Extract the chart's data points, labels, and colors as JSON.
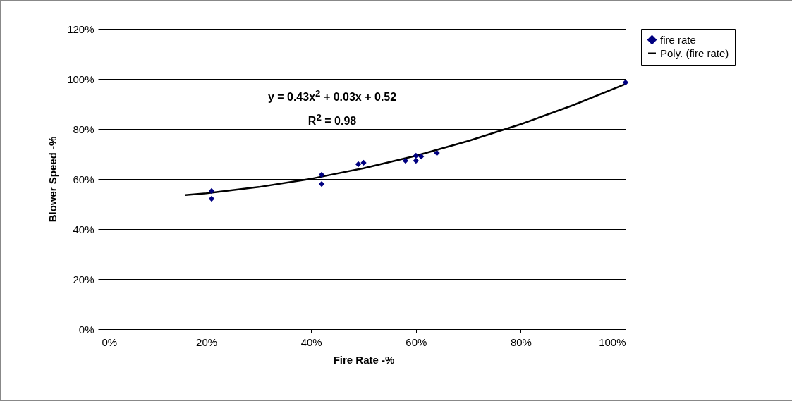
{
  "chart_data": {
    "type": "scatter",
    "xlabel": "Fire Rate -%",
    "ylabel": "Blower Speed -%",
    "series": [
      {
        "name": "fire rate",
        "color": "#000080",
        "marker": "diamond",
        "x": [
          21,
          21,
          42,
          42,
          49,
          50,
          58,
          60,
          60,
          61,
          64,
          100
        ],
        "values": [
          55.2,
          52.1,
          61.7,
          58.0,
          65.9,
          66.5,
          67.3,
          69.3,
          67.3,
          69.0,
          70.4,
          98.6
        ]
      },
      {
        "name": "Poly. (fire rate)",
        "type": "line",
        "color": "#000000",
        "line_style": "solid",
        "x": [
          16,
          20,
          30,
          40,
          50,
          60,
          70,
          80,
          90,
          100
        ],
        "values": [
          53.6,
          54.3,
          56.8,
          60.1,
          64.3,
          69.3,
          75.2,
          81.9,
          89.5,
          98.0
        ]
      }
    ],
    "xlim": [
      0,
      100
    ],
    "ylim": [
      0,
      120
    ],
    "xticks": [
      {
        "value": 0,
        "label": "0%"
      },
      {
        "value": 20,
        "label": "20%"
      },
      {
        "value": 40,
        "label": "40%"
      },
      {
        "value": 60,
        "label": "60%"
      },
      {
        "value": 80,
        "label": "80%"
      },
      {
        "value": 100,
        "label": "100%"
      }
    ],
    "yticks": [
      {
        "value": 0,
        "label": "0%"
      },
      {
        "value": 20,
        "label": "20%"
      },
      {
        "value": 40,
        "label": "40%"
      },
      {
        "value": 60,
        "label": "60%"
      },
      {
        "value": 80,
        "label": "80%"
      },
      {
        "value": 100,
        "label": "100%"
      },
      {
        "value": 120,
        "label": "120%"
      }
    ],
    "grid": "y",
    "legend": "right",
    "annotations": [
      "y = 0.43x$^{2}$ + 0.03x + 0.52",
      "R$^{2}$ = 0.98"
    ]
  }
}
